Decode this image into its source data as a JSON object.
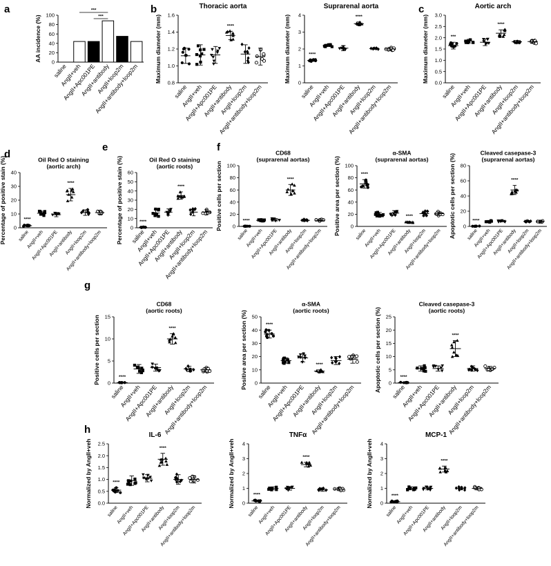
{
  "panels": {
    "a": "a",
    "b": "b",
    "c": "c",
    "d": "d",
    "e": "e",
    "f": "f",
    "g": "g",
    "h": "h"
  },
  "chart_data": [
    {
      "id": "a",
      "type": "bar",
      "ylabel": "AA incidence (%)",
      "categories": [
        "saline",
        "AngII+veh",
        "AngII+Apc001PE",
        "AngII+antibody",
        "AngII+loop2m",
        "AngII+antibody+loop2m"
      ],
      "values": [
        0,
        44,
        44,
        88,
        55,
        44
      ],
      "fills": [
        "#ffffff",
        "#ffffff",
        "#000000",
        "#ffffff",
        "#000000",
        "#ffffff"
      ],
      "ylim": [
        0,
        100
      ],
      "yticks": [
        0,
        20,
        40,
        60,
        80,
        100
      ],
      "brackets": [
        {
          "from": 1,
          "to": 3,
          "label": "***"
        },
        {
          "from": 2,
          "to": 3,
          "label": "***"
        }
      ]
    },
    {
      "id": "b1",
      "type": "scatter",
      "title": "Thoracic aorta",
      "ylabel": "Maximum diameter (mm)",
      "categories": [
        "saline",
        "AngII+veh",
        "AngII+Apc001PE",
        "AngII+antibody",
        "AngII+loop2m",
        "AngII+antibody+loop2m"
      ],
      "means": [
        1.12,
        1.13,
        1.13,
        1.36,
        1.14,
        1.11
      ],
      "sds": [
        0.09,
        0.12,
        0.1,
        0.05,
        0.11,
        0.1
      ],
      "markers": [
        "circle",
        "square",
        "triangle-down",
        "triangle",
        "diamond",
        "circle-open"
      ],
      "sig": [
        "",
        "",
        "",
        "****",
        "",
        ""
      ],
      "ylim": [
        0.8,
        1.6
      ],
      "yticks": [
        0.8,
        1.0,
        1.2,
        1.4,
        1.6
      ]
    },
    {
      "id": "b2",
      "type": "scatter",
      "title": "Suprarenal aorta",
      "ylabel": "Maximum diameter (mm)",
      "categories": [
        "saline",
        "AngII+veh",
        "AngII+Apc001PE",
        "AngII+antibody",
        "AngII+loop2m",
        "AngII+antibody+loop2m"
      ],
      "means": [
        1.32,
        2.2,
        2.05,
        3.5,
        2.02,
        2.0
      ],
      "sds": [
        0.05,
        0.06,
        0.15,
        0.1,
        0.03,
        0.1
      ],
      "markers": [
        "circle",
        "square",
        "triangle-down",
        "triangle",
        "diamond",
        "circle-open"
      ],
      "sig": [
        "****",
        "",
        "",
        "****",
        "",
        ""
      ],
      "ylim": [
        0,
        4
      ],
      "yticks": [
        0,
        1,
        2,
        3,
        4
      ]
    },
    {
      "id": "c",
      "type": "scatter",
      "title": "Aortic arch",
      "ylabel": "Maximum diameter (mm)",
      "categories": [
        "saline",
        "AngII+veh",
        "AngII+Apc001PE",
        "AngII+antibody",
        "AngII+loop2m",
        "AngII+antibody+loop2m"
      ],
      "means": [
        1.65,
        1.85,
        1.8,
        2.2,
        1.82,
        1.83
      ],
      "sds": [
        0.15,
        0.08,
        0.15,
        0.15,
        0.06,
        0.08
      ],
      "markers": [
        "circle",
        "square",
        "triangle-down",
        "triangle",
        "diamond",
        "circle-open"
      ],
      "sig": [
        "***",
        "",
        "",
        "****",
        "",
        ""
      ],
      "ylim": [
        0,
        3
      ],
      "yticks": [
        0.0,
        0.5,
        1.0,
        1.5,
        2.0,
        2.5,
        3.0
      ]
    },
    {
      "id": "d",
      "type": "scatter",
      "title": "Oil Red O staining\n(aortic arch)",
      "ylabel": "Percentage of positive stain (%)",
      "categories": [
        "saline",
        "AngII+veh",
        "AngII+Apc001PE",
        "AngII+antibody",
        "AngII+loop2m",
        "AngII+antibody+loop2m"
      ],
      "means": [
        1.5,
        10.5,
        9.5,
        24,
        11,
        11
      ],
      "sds": [
        0.8,
        1.5,
        1.5,
        4.5,
        2,
        1.2
      ],
      "markers": [
        "circle",
        "square",
        "triangle-down",
        "triangle",
        "diamond",
        "circle-open"
      ],
      "sig": [
        "****",
        "",
        "",
        "****",
        "",
        ""
      ],
      "ylim": [
        0,
        40
      ],
      "yticks": [
        0,
        10,
        20,
        30,
        40
      ]
    },
    {
      "id": "e",
      "type": "scatter",
      "title": "Oil Red O staining\n(aortic roots)",
      "ylabel": "Percentage of positive stain (%)",
      "categories": [
        "saline",
        "AngII+veh",
        "AngII+Apc001PE",
        "AngII+antibody",
        "AngII+loop2m",
        "AngII+antibody+loop2m"
      ],
      "means": [
        0.5,
        16,
        17,
        35,
        17,
        17
      ],
      "sds": [
        0.3,
        4,
        3.5,
        4,
        4,
        3
      ],
      "markers": [
        "circle",
        "square",
        "triangle-down",
        "triangle",
        "diamond",
        "circle-open"
      ],
      "sig": [
        "****",
        "",
        "",
        "****",
        "",
        ""
      ],
      "ylim": [
        0,
        60
      ],
      "yticks": [
        0,
        10,
        20,
        30,
        40,
        50,
        60
      ]
    },
    {
      "id": "f1",
      "type": "scatter",
      "title": "CD68\n(suprarenal aortas)",
      "ylabel": "Positive cells per section",
      "categories": [
        "saline",
        "AngII+veh",
        "AngII+Apc001PE",
        "AngII+antibody",
        "AngII+loop2m",
        "AngII+antibody+loop2m"
      ],
      "means": [
        0.3,
        10,
        11,
        60,
        10,
        10
      ],
      "sds": [
        0.2,
        1.5,
        2,
        9,
        1.5,
        1.5
      ],
      "markers": [
        "circle",
        "square",
        "triangle-down",
        "triangle",
        "diamond",
        "circle-open"
      ],
      "sig": [
        "****",
        "",
        "",
        "****",
        "",
        ""
      ],
      "ylim": [
        0,
        100
      ],
      "yticks": [
        0,
        20,
        40,
        60,
        80,
        100
      ]
    },
    {
      "id": "f2",
      "type": "scatter",
      "title": "α-SMA\n(suprarenal aortas)",
      "ylabel": "Positive area per section (%)",
      "categories": [
        "saline",
        "AngII+veh",
        "AngII+Apc001PE",
        "AngII+antibody",
        "AngII+loop2m",
        "AngII+antibody+loop2m"
      ],
      "means": [
        70,
        20,
        22,
        7,
        21,
        21
      ],
      "sds": [
        7,
        3,
        4,
        1,
        4,
        3
      ],
      "markers": [
        "circle",
        "square",
        "triangle-down",
        "triangle",
        "diamond",
        "circle-open"
      ],
      "sig": [
        "****",
        "",
        "",
        "****",
        "",
        ""
      ],
      "ylim": [
        0,
        100
      ],
      "yticks": [
        0,
        20,
        40,
        60,
        80,
        100
      ]
    },
    {
      "id": "f3",
      "type": "scatter",
      "title": "Cleaved casepase-3\n(suprarenal aortas)",
      "ylabel": "Apoptotic cells per section (%)",
      "categories": [
        "saline",
        "AngII+veh",
        "AngII+Apc001PE",
        "AngII+antibody",
        "AngII+loop2m",
        "AngII+antibody+loop2m"
      ],
      "means": [
        0.3,
        6.5,
        7,
        48,
        6.5,
        6.5
      ],
      "sds": [
        0.2,
        1,
        1,
        6,
        1,
        1
      ],
      "markers": [
        "circle",
        "square",
        "triangle-down",
        "triangle",
        "diamond",
        "circle-open"
      ],
      "sig": [
        "****",
        "",
        "",
        "****",
        "",
        ""
      ],
      "ylim": [
        0,
        80
      ],
      "yticks": [
        0,
        20,
        40,
        60,
        80
      ]
    },
    {
      "id": "g1",
      "type": "scatter",
      "title": "CD68\n(aortic roots)",
      "ylabel": "Positive cells per section",
      "categories": [
        "saline",
        "AngII+veh",
        "AngII+Apc001PE",
        "AngII+antibody",
        "AngII+loop2m",
        "AngII+antibody+loop2m"
      ],
      "means": [
        0.1,
        3.2,
        3.5,
        10,
        3.2,
        3
      ],
      "sds": [
        0.05,
        1,
        0.8,
        1.2,
        0.6,
        0.5
      ],
      "markers": [
        "circle",
        "square",
        "triangle-down",
        "triangle",
        "diamond",
        "circle-open"
      ],
      "sig": [
        "****",
        "",
        "",
        "****",
        "",
        ""
      ],
      "ylim": [
        0,
        15
      ],
      "yticks": [
        0,
        5,
        10,
        15
      ]
    },
    {
      "id": "g2",
      "type": "scatter",
      "title": "α-SMA\n(aortic roots)",
      "ylabel": "Positive area per section (%)",
      "categories": [
        "saline",
        "AngII+veh",
        "AngII+Apc001PE",
        "AngII+antibody",
        "AngII+loop2m",
        "AngII+antibody+loop2m"
      ],
      "means": [
        37,
        17,
        19,
        9,
        17,
        18
      ],
      "sds": [
        3,
        2,
        3,
        1,
        3,
        3
      ],
      "markers": [
        "circle",
        "square",
        "triangle-down",
        "triangle",
        "diamond",
        "circle-open"
      ],
      "sig": [
        "****",
        "",
        "",
        "****",
        "",
        ""
      ],
      "ylim": [
        0,
        50
      ],
      "yticks": [
        0,
        10,
        20,
        30,
        40,
        50
      ]
    },
    {
      "id": "g3",
      "type": "scatter",
      "title": "Cleaved casepase-3\n(aortic roots)",
      "ylabel": "Apoptotic cells per section (%)",
      "categories": [
        "saline",
        "AngII+veh",
        "AngII+Apc001PE",
        "AngII+antibody",
        "AngII+loop2m",
        "AngII+antibody+loop2m"
      ],
      "means": [
        0.2,
        5.5,
        5.5,
        13,
        5.5,
        5.5
      ],
      "sds": [
        0.1,
        1,
        1,
        3,
        1,
        0.8
      ],
      "markers": [
        "circle",
        "square",
        "triangle-down",
        "triangle",
        "diamond",
        "circle-open"
      ],
      "sig": [
        "****",
        "",
        "",
        "****",
        "",
        ""
      ],
      "ylim": [
        0,
        25
      ],
      "yticks": [
        0,
        5,
        10,
        15,
        20,
        25
      ]
    },
    {
      "id": "h1",
      "type": "scatter",
      "title": "IL-6",
      "ylabel": "Normalized by AngII+veh",
      "categories": [
        "saline",
        "AngII+veh",
        "AngII+Apc001PE",
        "AngII+antibody",
        "AngII+loop2m",
        "AngII+antibody+loop2m"
      ],
      "means": [
        0.55,
        0.95,
        1.05,
        1.85,
        1.0,
        1.0
      ],
      "sds": [
        0.1,
        0.2,
        0.15,
        0.25,
        0.2,
        0.15
      ],
      "markers": [
        "circle",
        "square",
        "triangle-down",
        "triangle",
        "diamond",
        "circle-open"
      ],
      "sig": [
        "****",
        "",
        "",
        "****",
        "",
        ""
      ],
      "ylim": [
        0,
        2.5
      ],
      "yticks": [
        0.0,
        0.5,
        1.0,
        1.5,
        2.0,
        2.5
      ]
    },
    {
      "id": "h2",
      "type": "scatter",
      "title": "TNFα",
      "ylabel": "Normalized by AngII+veh",
      "categories": [
        "saline",
        "AngII+veh",
        "AngII+Apc001PE",
        "AngII+antibody",
        "AngII+loop2m",
        "AngII+antibody+loop2m"
      ],
      "means": [
        0.15,
        1.0,
        1.0,
        2.6,
        0.9,
        0.95
      ],
      "sds": [
        0.05,
        0.1,
        0.12,
        0.15,
        0.1,
        0.1
      ],
      "markers": [
        "circle",
        "square",
        "triangle-down",
        "triangle",
        "diamond",
        "circle-open"
      ],
      "sig": [
        "****",
        "",
        "",
        "****",
        "",
        ""
      ],
      "ylim": [
        0,
        4
      ],
      "yticks": [
        0,
        1,
        2,
        3,
        4
      ]
    },
    {
      "id": "h3",
      "type": "scatter",
      "title": "MCP-1",
      "ylabel": "Normalized by AngII+veh",
      "categories": [
        "saline",
        "AngII+veh",
        "AngII+Apc001PE",
        "AngII+antibody",
        "AngII+loop2m",
        "AngII+antibody+loop2m"
      ],
      "means": [
        0.1,
        1.0,
        1.0,
        2.3,
        1.0,
        1.0
      ],
      "sds": [
        0.05,
        0.1,
        0.1,
        0.2,
        0.1,
        0.1
      ],
      "markers": [
        "circle",
        "square",
        "triangle-down",
        "triangle",
        "diamond",
        "circle-open"
      ],
      "sig": [
        "****",
        "",
        "",
        "****",
        "",
        ""
      ],
      "ylim": [
        0,
        4
      ],
      "yticks": [
        0,
        1,
        2,
        3,
        4
      ]
    }
  ]
}
